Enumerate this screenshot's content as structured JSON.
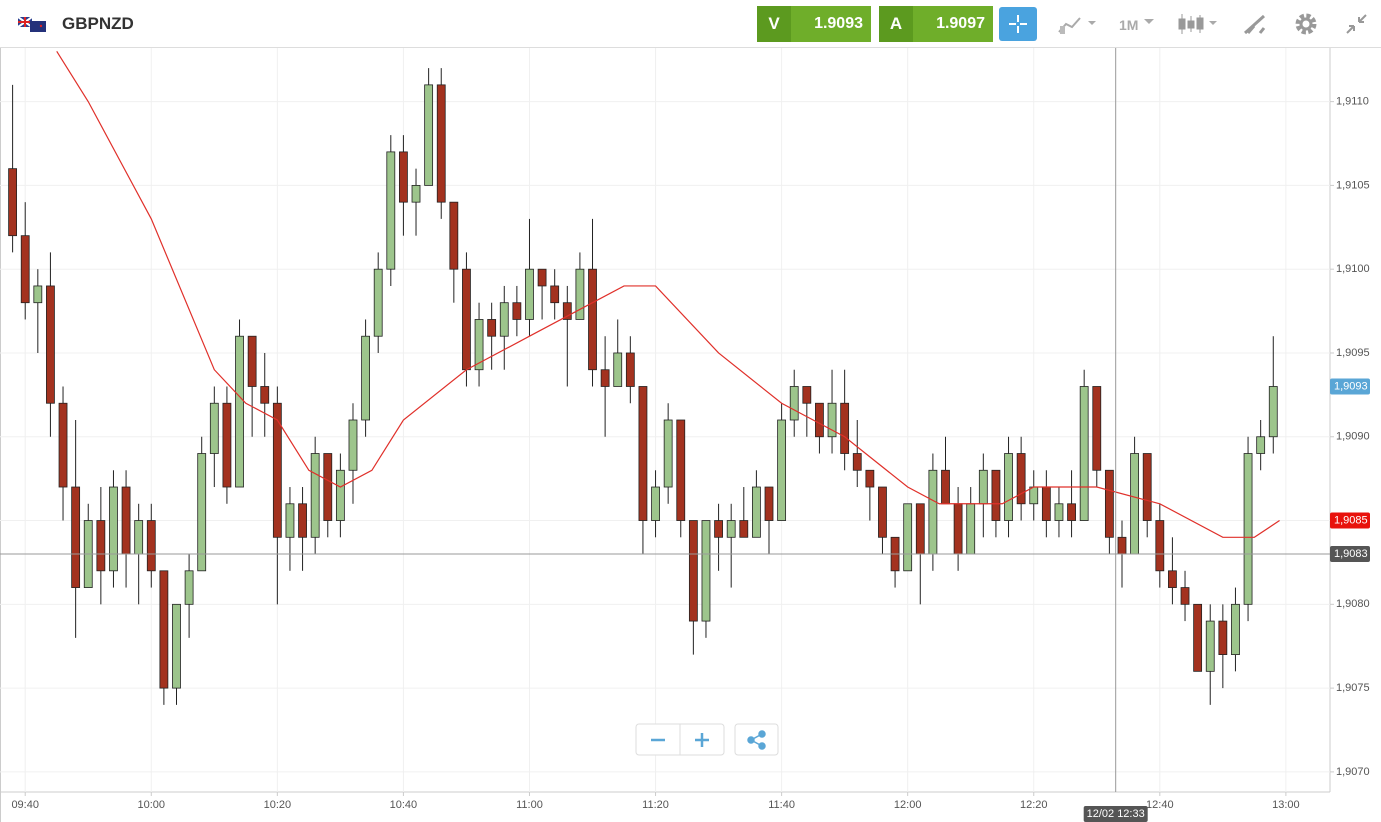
{
  "header": {
    "symbol": "GBPNZD",
    "bid": {
      "label": "V",
      "value": 1.9093
    },
    "ask": {
      "label": "A",
      "value": 1.9097
    },
    "timeframe": "1M"
  },
  "chart_data": {
    "type": "candlestick",
    "x": [
      "09:38",
      "09:40",
      "09:42",
      "09:44",
      "09:46",
      "09:48",
      "09:50",
      "09:52",
      "09:54",
      "09:56",
      "09:58",
      "10:00",
      "10:02",
      "10:04",
      "10:06",
      "10:08",
      "10:10",
      "10:12",
      "10:14",
      "10:16",
      "10:18",
      "10:20",
      "10:22",
      "10:24",
      "10:26",
      "10:28",
      "10:30",
      "10:32",
      "10:34",
      "10:36",
      "10:38",
      "10:40",
      "10:42",
      "10:44",
      "10:46",
      "10:48",
      "10:50",
      "10:52",
      "10:54",
      "10:56",
      "10:58",
      "11:00",
      "11:02",
      "11:04",
      "11:06",
      "11:08",
      "11:10",
      "11:12",
      "11:14",
      "11:16",
      "11:18",
      "11:20",
      "11:22",
      "11:24",
      "11:26",
      "11:28",
      "11:30",
      "11:32",
      "11:34",
      "11:36",
      "11:38",
      "11:40",
      "11:42",
      "11:44",
      "11:46",
      "11:48",
      "11:50",
      "11:52",
      "11:54",
      "11:56",
      "11:58",
      "12:00",
      "12:02",
      "12:04",
      "12:06",
      "12:08",
      "12:10",
      "12:12",
      "12:14",
      "12:16",
      "12:18",
      "12:20",
      "12:22",
      "12:24",
      "12:26",
      "12:28",
      "12:30",
      "12:32",
      "12:34",
      "12:36",
      "12:38",
      "12:40",
      "12:42",
      "12:44",
      "12:46",
      "12:48",
      "12:50",
      "12:52",
      "12:54",
      "12:56",
      "12:58"
    ],
    "open": [
      1.9106,
      1.9102,
      1.9098,
      1.9099,
      1.9092,
      1.9087,
      1.9081,
      1.9085,
      1.9082,
      1.9087,
      1.9083,
      1.9085,
      1.9082,
      1.9075,
      1.908,
      1.9082,
      1.9089,
      1.9092,
      1.9087,
      1.9096,
      1.9093,
      1.9092,
      1.9084,
      1.9086,
      1.9084,
      1.9089,
      1.9085,
      1.9088,
      1.9091,
      1.9096,
      1.91,
      1.9107,
      1.9104,
      1.9105,
      1.9111,
      1.9104,
      1.91,
      1.9094,
      1.9097,
      1.9096,
      1.9098,
      1.9097,
      1.91,
      1.9099,
      1.9098,
      1.9097,
      1.91,
      1.9094,
      1.9093,
      1.9095,
      1.9093,
      1.9085,
      1.9087,
      1.9091,
      1.9085,
      1.9079,
      1.9085,
      1.9084,
      1.9085,
      1.9084,
      1.9087,
      1.9085,
      1.9091,
      1.9093,
      1.9092,
      1.909,
      1.9092,
      1.9089,
      1.9088,
      1.9087,
      1.9084,
      1.9082,
      1.9086,
      1.9083,
      1.9088,
      1.9086,
      1.9083,
      1.9086,
      1.9088,
      1.9085,
      1.9089,
      1.9086,
      1.9087,
      1.9085,
      1.9086,
      1.9085,
      1.9093,
      1.9088,
      1.9084,
      1.9083,
      1.9089,
      1.9085,
      1.9082,
      1.9081,
      1.908,
      1.9076,
      1.9079,
      1.9077,
      1.908,
      1.9089,
      1.909
    ],
    "high": [
      1.9111,
      1.9104,
      1.91,
      1.9101,
      1.9093,
      1.9091,
      1.9086,
      1.9087,
      1.9088,
      1.9088,
      1.9086,
      1.9086,
      1.9082,
      1.908,
      1.9083,
      1.909,
      1.9093,
      1.9093,
      1.9097,
      1.9096,
      1.9095,
      1.9093,
      1.9087,
      1.9087,
      1.909,
      1.9089,
      1.9089,
      1.9092,
      1.9097,
      1.9101,
      1.9108,
      1.9108,
      1.9106,
      1.9112,
      1.9112,
      1.9104,
      1.9101,
      1.9098,
      1.9098,
      1.9099,
      1.9099,
      1.9103,
      1.91,
      1.91,
      1.9099,
      1.9101,
      1.9103,
      1.9096,
      1.9097,
      1.9096,
      1.9093,
      1.9088,
      1.9092,
      1.9091,
      1.9085,
      1.9085,
      1.9086,
      1.9086,
      1.9087,
      1.9088,
      1.9087,
      1.9092,
      1.9094,
      1.9093,
      1.9092,
      1.9094,
      1.9094,
      1.9091,
      1.9088,
      1.9087,
      1.9084,
      1.9086,
      1.9086,
      1.9089,
      1.909,
      1.9087,
      1.9087,
      1.9089,
      1.9088,
      1.909,
      1.909,
      1.9088,
      1.9088,
      1.9087,
      1.9088,
      1.9094,
      1.9093,
      1.9088,
      1.9085,
      1.909,
      1.9089,
      1.9086,
      1.9084,
      1.9082,
      1.908,
      1.908,
      1.908,
      1.9081,
      1.909,
      1.9091,
      1.9096
    ],
    "low": [
      1.9101,
      1.9097,
      1.9095,
      1.909,
      1.9085,
      1.9078,
      1.9081,
      1.908,
      1.9081,
      1.9081,
      1.908,
      1.9081,
      1.9074,
      1.9074,
      1.9078,
      1.9082,
      1.9087,
      1.9086,
      1.9087,
      1.909,
      1.909,
      1.908,
      1.9082,
      1.9082,
      1.9083,
      1.9084,
      1.9084,
      1.9086,
      1.909,
      1.9095,
      1.9099,
      1.9102,
      1.9102,
      1.9105,
      1.9103,
      1.9098,
      1.9093,
      1.9093,
      1.9094,
      1.9094,
      1.9096,
      1.9096,
      1.9097,
      1.9097,
      1.9093,
      1.9097,
      1.9093,
      1.909,
      1.9093,
      1.9092,
      1.9083,
      1.9084,
      1.9086,
      1.9084,
      1.9077,
      1.9078,
      1.9082,
      1.9081,
      1.9084,
      1.9084,
      1.9083,
      1.9085,
      1.909,
      1.909,
      1.9089,
      1.9089,
      1.9088,
      1.9087,
      1.9085,
      1.9083,
      1.9081,
      1.9082,
      1.908,
      1.9082,
      1.9086,
      1.9082,
      1.9083,
      1.9084,
      1.9084,
      1.9084,
      1.9085,
      1.9085,
      1.9084,
      1.9084,
      1.9084,
      1.9085,
      1.9087,
      1.9083,
      1.9081,
      1.9083,
      1.9084,
      1.9081,
      1.908,
      1.9079,
      1.9076,
      1.9074,
      1.9075,
      1.9076,
      1.9079,
      1.9088,
      1.9089
    ],
    "close": [
      1.9102,
      1.9098,
      1.9099,
      1.9092,
      1.9087,
      1.9081,
      1.9085,
      1.9082,
      1.9087,
      1.9083,
      1.9085,
      1.9082,
      1.9075,
      1.908,
      1.9082,
      1.9089,
      1.9092,
      1.9087,
      1.9096,
      1.9093,
      1.9092,
      1.9084,
      1.9086,
      1.9084,
      1.9089,
      1.9085,
      1.9088,
      1.9091,
      1.9096,
      1.91,
      1.9107,
      1.9104,
      1.9105,
      1.9111,
      1.9104,
      1.91,
      1.9094,
      1.9097,
      1.9096,
      1.9098,
      1.9097,
      1.91,
      1.9099,
      1.9098,
      1.9097,
      1.91,
      1.9094,
      1.9093,
      1.9095,
      1.9093,
      1.9085,
      1.9087,
      1.9091,
      1.9085,
      1.9079,
      1.9085,
      1.9084,
      1.9085,
      1.9084,
      1.9087,
      1.9085,
      1.9091,
      1.9093,
      1.9092,
      1.909,
      1.9092,
      1.9089,
      1.9088,
      1.9087,
      1.9084,
      1.9082,
      1.9086,
      1.9083,
      1.9088,
      1.9086,
      1.9083,
      1.9086,
      1.9088,
      1.9085,
      1.9089,
      1.9086,
      1.9087,
      1.9085,
      1.9086,
      1.9085,
      1.9093,
      1.9088,
      1.9084,
      1.9083,
      1.9089,
      1.9085,
      1.9082,
      1.9081,
      1.908,
      1.9076,
      1.9079,
      1.9077,
      1.908,
      1.9089,
      1.909,
      1.9093
    ],
    "up_color": "#9dc58c",
    "down_color": "#a3321f",
    "moving_average": {
      "color": "#e0302a",
      "x": [
        "09:45",
        "09:50",
        "10:00",
        "10:10",
        "10:15",
        "10:20",
        "10:25",
        "10:30",
        "10:35",
        "10:40",
        "10:50",
        "11:00",
        "11:05",
        "11:10",
        "11:15",
        "11:20",
        "11:30",
        "11:40",
        "11:50",
        "12:00",
        "12:05",
        "12:15",
        "12:20",
        "12:30",
        "12:40",
        "12:50",
        "12:55",
        "12:59"
      ],
      "values": [
        1.9113,
        1.911,
        1.9103,
        1.9094,
        1.9092,
        1.9091,
        1.9088,
        1.9087,
        1.9088,
        1.9091,
        1.9094,
        1.9096,
        1.9097,
        1.9098,
        1.9099,
        1.9099,
        1.9095,
        1.9092,
        1.909,
        1.9087,
        1.9086,
        1.9086,
        1.9087,
        1.9087,
        1.9086,
        1.9084,
        1.9084,
        1.9085
      ]
    },
    "xlim": [
      "09:36",
      "13:07"
    ],
    "xticks": [
      "09:40",
      "10:00",
      "10:20",
      "10:40",
      "11:00",
      "11:20",
      "11:40",
      "12:00",
      "12:20",
      "12:40",
      "13:00"
    ],
    "ylim": [
      1.90688,
      1.91132
    ],
    "yticks": [
      {
        "value": 1.907,
        "label": "1,9070"
      },
      {
        "value": 1.9075,
        "label": "1,9075"
      },
      {
        "value": 1.908,
        "label": "1,9080"
      },
      {
        "value": 1.9085,
        "label": "1,9085"
      },
      {
        "value": 1.909,
        "label": "1,9090"
      },
      {
        "value": 1.9095,
        "label": "1,9095"
      },
      {
        "value": 1.91,
        "label": "1,9100"
      },
      {
        "value": 1.9105,
        "label": "1,9105"
      },
      {
        "value": 1.911,
        "label": "1,9110"
      }
    ],
    "grid": true,
    "price_labels": [
      {
        "value": 1.9093,
        "label": "1,9093",
        "color": "#5aa6d6"
      },
      {
        "value": 1.9085,
        "label": "1,9085",
        "color": "#e8120c"
      },
      {
        "value": 1.9083,
        "label": "1,9083",
        "color": "#555555"
      }
    ],
    "crosshair": {
      "label": "12/02 12:33"
    }
  }
}
